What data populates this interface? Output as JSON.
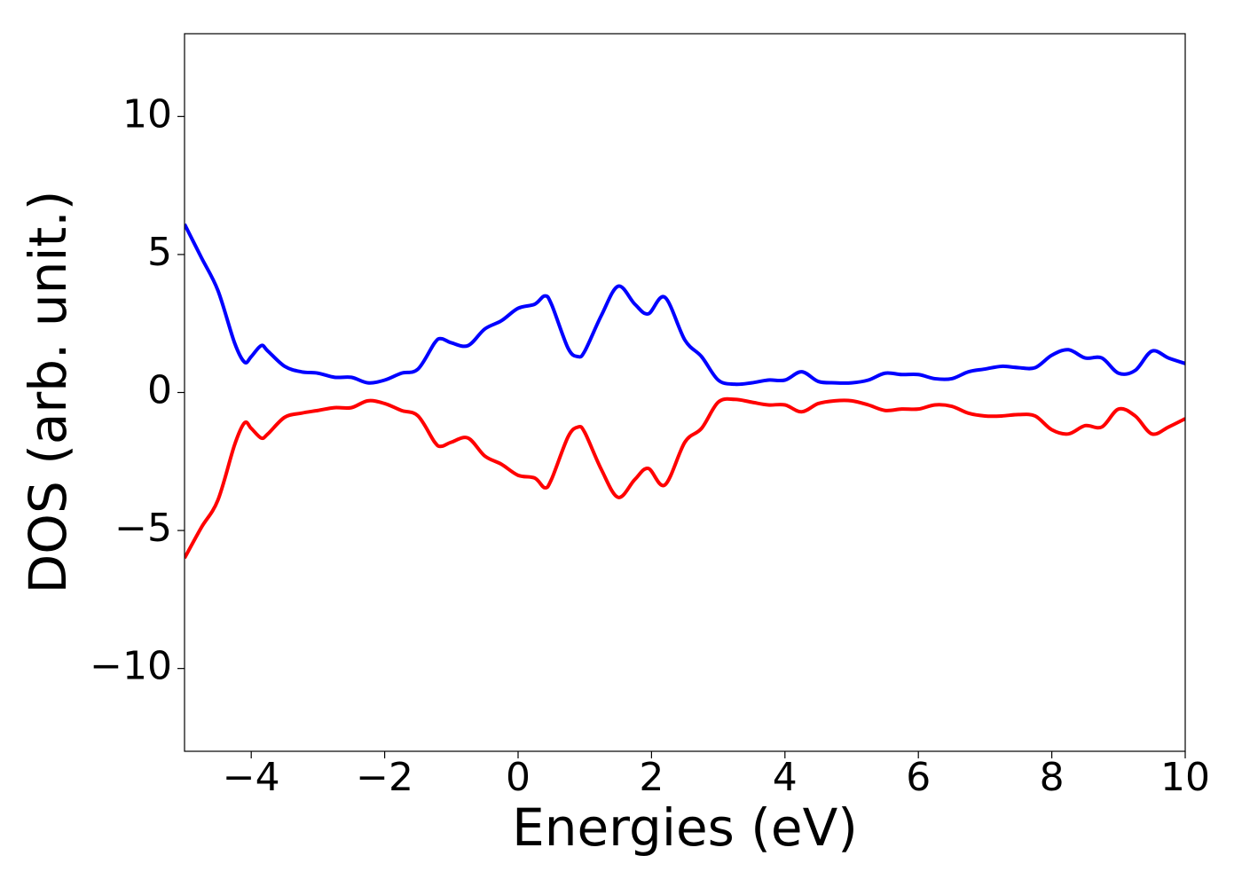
{
  "chart_data": {
    "type": "line",
    "xlabel": "Energies (eV)",
    "ylabel": "DOS (arb. unit.)",
    "x": [
      -5,
      -4.75,
      -4.5,
      -4.25,
      -4.1,
      -4,
      -3.85,
      -3.75,
      -3.5,
      -3.25,
      -3,
      -2.75,
      -2.5,
      -2.25,
      -2,
      -1.75,
      -1.5,
      -1.25,
      -1.15,
      -1,
      -0.75,
      -0.5,
      -0.25,
      0,
      0.25,
      0.4,
      0.5,
      0.75,
      0.9,
      1,
      1.25,
      1.5,
      1.75,
      1.95,
      2.2,
      2.5,
      2.75,
      3,
      3.25,
      3.5,
      3.75,
      4,
      4.25,
      4.5,
      4.75,
      5,
      5.25,
      5.5,
      5.75,
      6,
      6.25,
      6.5,
      6.75,
      7,
      7.25,
      7.5,
      7.75,
      8,
      8.25,
      8.5,
      8.75,
      9,
      9.25,
      9.5,
      9.75,
      10
    ],
    "series": [
      {
        "color": "#0000ff",
        "values": [
          6.1,
          4.9,
          3.7,
          1.8,
          1.1,
          1.3,
          1.7,
          1.5,
          0.95,
          0.75,
          0.7,
          0.55,
          0.55,
          0.35,
          0.45,
          0.7,
          0.85,
          1.8,
          1.95,
          1.8,
          1.7,
          2.3,
          2.6,
          3.05,
          3.2,
          3.5,
          3.2,
          1.6,
          1.3,
          1.5,
          2.8,
          3.85,
          3.2,
          2.85,
          3.45,
          1.9,
          1.3,
          0.45,
          0.3,
          0.35,
          0.45,
          0.45,
          0.75,
          0.4,
          0.35,
          0.35,
          0.45,
          0.7,
          0.65,
          0.65,
          0.5,
          0.5,
          0.75,
          0.85,
          0.95,
          0.9,
          0.9,
          1.35,
          1.55,
          1.25,
          1.25,
          0.7,
          0.8,
          1.5,
          1.25,
          1.05
        ]
      },
      {
        "color": "#ff0000",
        "values": [
          -6.0,
          -4.9,
          -3.9,
          -1.9,
          -1.1,
          -1.3,
          -1.65,
          -1.5,
          -0.9,
          -0.75,
          -0.65,
          -0.55,
          -0.55,
          -0.3,
          -0.4,
          -0.65,
          -0.85,
          -1.8,
          -1.95,
          -1.8,
          -1.65,
          -2.3,
          -2.6,
          -3.0,
          -3.1,
          -3.45,
          -3.15,
          -1.6,
          -1.25,
          -1.45,
          -2.8,
          -3.8,
          -3.15,
          -2.75,
          -3.35,
          -1.8,
          -1.3,
          -0.35,
          -0.25,
          -0.35,
          -0.45,
          -0.45,
          -0.7,
          -0.4,
          -0.3,
          -0.3,
          -0.45,
          -0.65,
          -0.6,
          -0.6,
          -0.45,
          -0.5,
          -0.75,
          -0.85,
          -0.85,
          -0.8,
          -0.85,
          -1.35,
          -1.5,
          -1.2,
          -1.25,
          -0.6,
          -0.85,
          -1.5,
          -1.25,
          -0.95
        ]
      }
    ],
    "xlim": [
      -5,
      10
    ],
    "xticks": [
      {
        "value": -4,
        "label": "−4"
      },
      {
        "value": -2,
        "label": "−2"
      },
      0,
      2,
      4,
      6,
      8,
      10
    ],
    "ylim": [
      -13,
      13
    ],
    "yticks": [
      {
        "value": -10,
        "label": "−10"
      },
      {
        "value": -5,
        "label": "−5"
      },
      0,
      5,
      10
    ],
    "grid": false
  }
}
